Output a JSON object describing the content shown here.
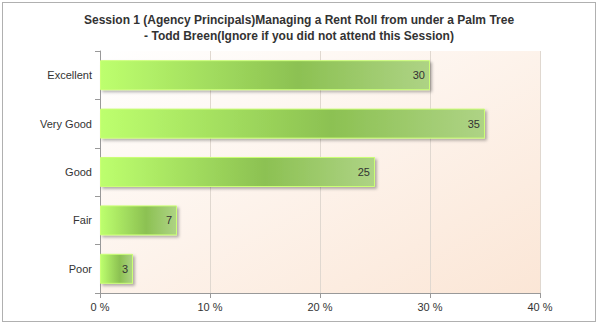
{
  "chart_data": {
    "type": "bar",
    "orientation": "horizontal",
    "title": "Session 1 (Agency Principals)Managing a Rent Roll from under a Palm Tree\n- Todd Breen(Ignore if you did not attend this Session)",
    "categories": [
      "Excellent",
      "Very Good",
      "Good",
      "Fair",
      "Poor"
    ],
    "values": [
      30,
      35,
      25,
      7,
      3
    ],
    "color": "#8cc152",
    "xlim": [
      0,
      40
    ],
    "xticks": [
      {
        "value": 0,
        "label": "0 %"
      },
      {
        "value": 10,
        "label": "10 %"
      },
      {
        "value": 20,
        "label": "20 %"
      },
      {
        "value": 30,
        "label": "30 %"
      },
      {
        "value": 40,
        "label": "40 %"
      }
    ],
    "grid": true,
    "data_labels": true
  }
}
